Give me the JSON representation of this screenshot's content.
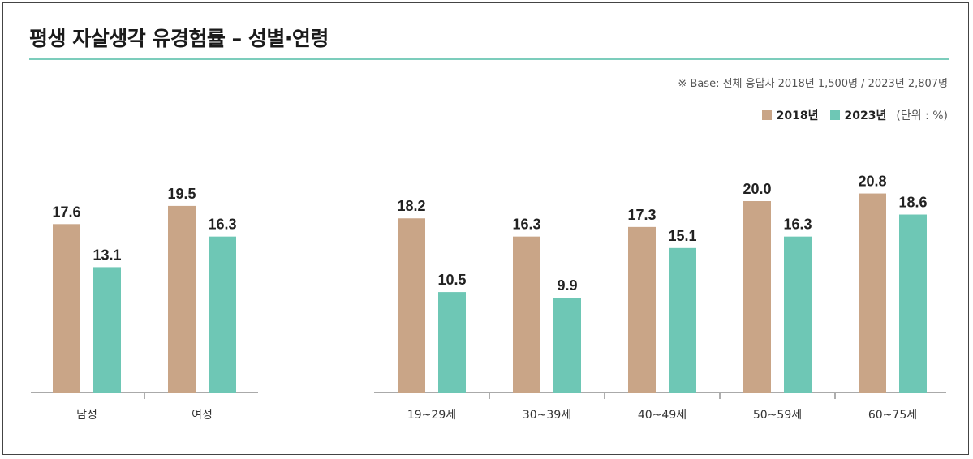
{
  "title": "평생 자살생각 유경험률 – 성별·연령",
  "base_note": "※ Base: 전체 응답자 2018년 1,500명 / 2023년 2,807명",
  "unit": "(단위 : %)",
  "colors": {
    "2018": "#c9a587",
    "2023": "#6ec7b5",
    "accent_rule": "#7ccdbc"
  },
  "chart_data": [
    {
      "type": "bar",
      "title": "",
      "categories": [
        "남성",
        "여성"
      ],
      "series": [
        {
          "name": "2018년",
          "values": [
            17.6,
            19.5
          ]
        },
        {
          "name": "2023년",
          "values": [
            13.1,
            16.3
          ]
        }
      ],
      "ylim": [
        0,
        30
      ],
      "grid": false
    },
    {
      "type": "bar",
      "title": "",
      "categories": [
        "19~29세",
        "30~39세",
        "40~49세",
        "50~59세",
        "60~75세"
      ],
      "series": [
        {
          "name": "2018년",
          "values": [
            18.2,
            16.3,
            17.3,
            20.0,
            20.8
          ]
        },
        {
          "name": "2023년",
          "values": [
            10.5,
            9.9,
            15.1,
            16.3,
            18.6
          ]
        }
      ],
      "ylim": [
        0,
        30
      ],
      "grid": false
    }
  ]
}
